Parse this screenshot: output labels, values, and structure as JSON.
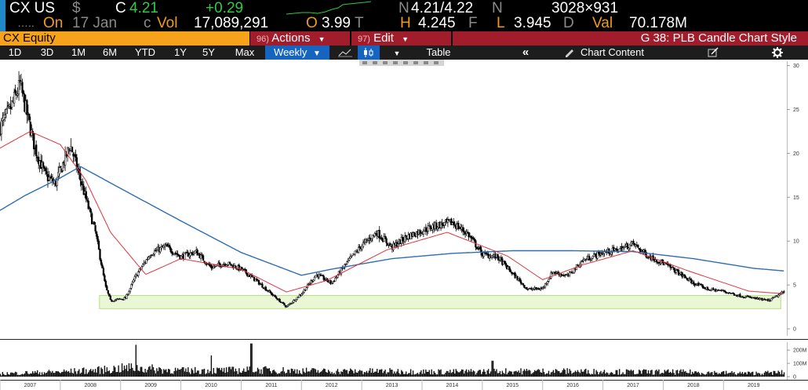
{
  "ticker": {
    "symbol": "CX US",
    "currency_symbol": "$",
    "last_prefix": "C",
    "last": "4.21",
    "change": "+0.29",
    "bidask_prefix": "N",
    "bidask": "4.21/4.22",
    "bidask_suffix": "N",
    "size": "3028×931",
    "dots": "…..",
    "on_label": "On",
    "date": "17 Jan",
    "date_suffix": "c",
    "vol_label": "Vol",
    "volume": "17,089,291",
    "open_label": "O",
    "open": "3.99",
    "open_suffix": "T",
    "high_label": "H",
    "high": "4.245",
    "high_suffix": "F",
    "low_label": "L",
    "low": "3.945",
    "low_suffix": "D",
    "val_label": "Val",
    "value": "70.178M"
  },
  "toolbar": {
    "security": "CX Equity",
    "actions_num": "96)",
    "actions_label": "Actions",
    "edit_num": "97)",
    "edit_label": "Edit",
    "chart_style": "G 38: PLB Candle Chart Style"
  },
  "periods": {
    "items": [
      "1D",
      "3D",
      "1M",
      "6M",
      "YTD",
      "1Y",
      "5Y",
      "Max"
    ],
    "frequency": "Weekly",
    "table_label": "Table",
    "collapse_glyph": "«",
    "chart_content_label": "Chart Content"
  },
  "colors": {
    "orange": "#f7a21b",
    "red": "#a21d2b",
    "blue_sma": "#2e6db4",
    "red_sma": "#e0323c",
    "support_band": "#b6e07a",
    "up_candle": "#ffffff",
    "down_candle": "#000000"
  },
  "chart_data": [
    {
      "type": "candlestick",
      "title": "",
      "x": [
        "2007",
        "2008",
        "2009",
        "2010",
        "2011",
        "2012",
        "2013",
        "2014",
        "2015",
        "2016",
        "2017",
        "2018",
        "2019"
      ],
      "y_ticks": [
        0,
        5,
        10,
        15,
        20,
        25,
        30
      ],
      "ylim": [
        -0.8,
        30.5
      ],
      "series": [
        {
          "kind": "close",
          "anchors": [
            [
              "2007-01",
              23.0
            ],
            [
              "2007-03",
              25.0
            ],
            [
              "2007-05",
              27.8
            ],
            [
              "2007-08",
              20.5
            ],
            [
              "2007-10",
              17.5
            ],
            [
              "2007-12",
              16.5
            ],
            [
              "2008-01",
              18.0
            ],
            [
              "2008-03",
              21.0
            ],
            [
              "2008-06",
              15.0
            ],
            [
              "2008-08",
              11.0
            ],
            [
              "2008-10",
              4.8
            ],
            [
              "2008-11",
              3.2
            ],
            [
              "2009-02",
              3.5
            ],
            [
              "2009-04",
              6.0
            ],
            [
              "2009-07",
              8.6
            ],
            [
              "2009-10",
              9.4
            ],
            [
              "2010-01",
              8.2
            ],
            [
              "2010-04",
              8.8
            ],
            [
              "2010-07",
              7.0
            ],
            [
              "2010-10",
              7.5
            ],
            [
              "2011-01",
              6.8
            ],
            [
              "2011-04",
              5.5
            ],
            [
              "2011-07",
              4.0
            ],
            [
              "2011-10",
              2.5
            ],
            [
              "2012-01",
              4.0
            ],
            [
              "2012-04",
              6.2
            ],
            [
              "2012-07",
              5.2
            ],
            [
              "2012-10",
              7.5
            ],
            [
              "2013-01",
              9.5
            ],
            [
              "2013-04",
              11.0
            ],
            [
              "2013-07",
              9.3
            ],
            [
              "2013-10",
              10.5
            ],
            [
              "2014-01",
              11.2
            ],
            [
              "2014-04",
              11.8
            ],
            [
              "2014-07",
              12.1
            ],
            [
              "2014-10",
              10.9
            ],
            [
              "2015-01",
              8.5
            ],
            [
              "2015-04",
              8.2
            ],
            [
              "2015-07",
              6.3
            ],
            [
              "2015-10",
              4.5
            ],
            [
              "2016-01",
              4.6
            ],
            [
              "2016-03",
              6.5
            ],
            [
              "2016-06",
              6.0
            ],
            [
              "2016-09",
              7.8
            ],
            [
              "2017-01",
              8.7
            ],
            [
              "2017-04",
              9.0
            ],
            [
              "2017-07",
              9.7
            ],
            [
              "2017-10",
              8.3
            ],
            [
              "2018-01",
              7.5
            ],
            [
              "2018-04",
              6.4
            ],
            [
              "2018-07",
              5.2
            ],
            [
              "2018-10",
              4.5
            ],
            [
              "2019-01",
              4.3
            ],
            [
              "2019-04",
              3.8
            ],
            [
              "2019-07",
              3.5
            ],
            [
              "2019-10",
              3.2
            ],
            [
              "2020-01",
              4.2
            ]
          ]
        },
        {
          "kind": "sma_long",
          "name": "",
          "anchors": [
            [
              "2007-01",
              13.5
            ],
            [
              "2007-06",
              15.2
            ],
            [
              "2008-01",
              17.2
            ],
            [
              "2008-05",
              18.5
            ],
            [
              "2009-01",
              16.0
            ],
            [
              "2010-01",
              12.3
            ],
            [
              "2011-01",
              8.7
            ],
            [
              "2012-01",
              6.1
            ],
            [
              "2012-07",
              6.8
            ],
            [
              "2013-07",
              8.0
            ],
            [
              "2014-07",
              8.6
            ],
            [
              "2015-07",
              8.9
            ],
            [
              "2016-07",
              8.9
            ],
            [
              "2017-07",
              8.8
            ],
            [
              "2018-07",
              8.0
            ],
            [
              "2019-07",
              6.9
            ],
            [
              "2020-01",
              6.6
            ]
          ]
        },
        {
          "kind": "sma_short",
          "name": "",
          "anchors": [
            [
              "2007-01",
              20.6
            ],
            [
              "2007-07",
              22.5
            ],
            [
              "2008-01",
              21.0
            ],
            [
              "2008-06",
              17.0
            ],
            [
              "2008-11",
              11.0
            ],
            [
              "2009-06",
              6.2
            ],
            [
              "2010-01",
              8.0
            ],
            [
              "2011-01",
              6.8
            ],
            [
              "2011-10",
              4.2
            ],
            [
              "2012-06",
              5.5
            ],
            [
              "2013-06",
              9.0
            ],
            [
              "2014-06",
              11.0
            ],
            [
              "2015-06",
              8.3
            ],
            [
              "2016-01",
              5.6
            ],
            [
              "2016-09",
              7.3
            ],
            [
              "2017-07",
              8.9
            ],
            [
              "2018-06",
              6.6
            ],
            [
              "2019-06",
              4.3
            ],
            [
              "2020-01",
              4.0
            ]
          ]
        }
      ],
      "support_band": [
        2.3,
        3.8
      ],
      "grid": false,
      "legend": "none"
    },
    {
      "type": "bar",
      "title": "",
      "y_ticks": [
        "200M",
        "100M",
        "0"
      ],
      "ylim": [
        0,
        260
      ],
      "series": [
        {
          "kind": "weekly_volume_profile",
          "anchors": [
            [
              "2007-01",
              25
            ],
            [
              "2008-01",
              40
            ],
            [
              "2008-09",
              55
            ],
            [
              "2009-03",
              75
            ],
            [
              "2010-01",
              50
            ],
            [
              "2011-06",
              55
            ],
            [
              "2012-06",
              45
            ],
            [
              "2013-06",
              45
            ],
            [
              "2014-06",
              40
            ],
            [
              "2015-06",
              45
            ],
            [
              "2016-06",
              45
            ],
            [
              "2017-06",
              40
            ],
            [
              "2018-06",
              38
            ],
            [
              "2019-06",
              28
            ],
            [
              "2020-01",
              35
            ]
          ],
          "peaks": [
            [
              "2009-04",
              240
            ],
            [
              "2011-03",
              250
            ],
            [
              "2010-07",
              160
            ],
            [
              "2015-03",
              120
            ]
          ]
        }
      ]
    }
  ]
}
